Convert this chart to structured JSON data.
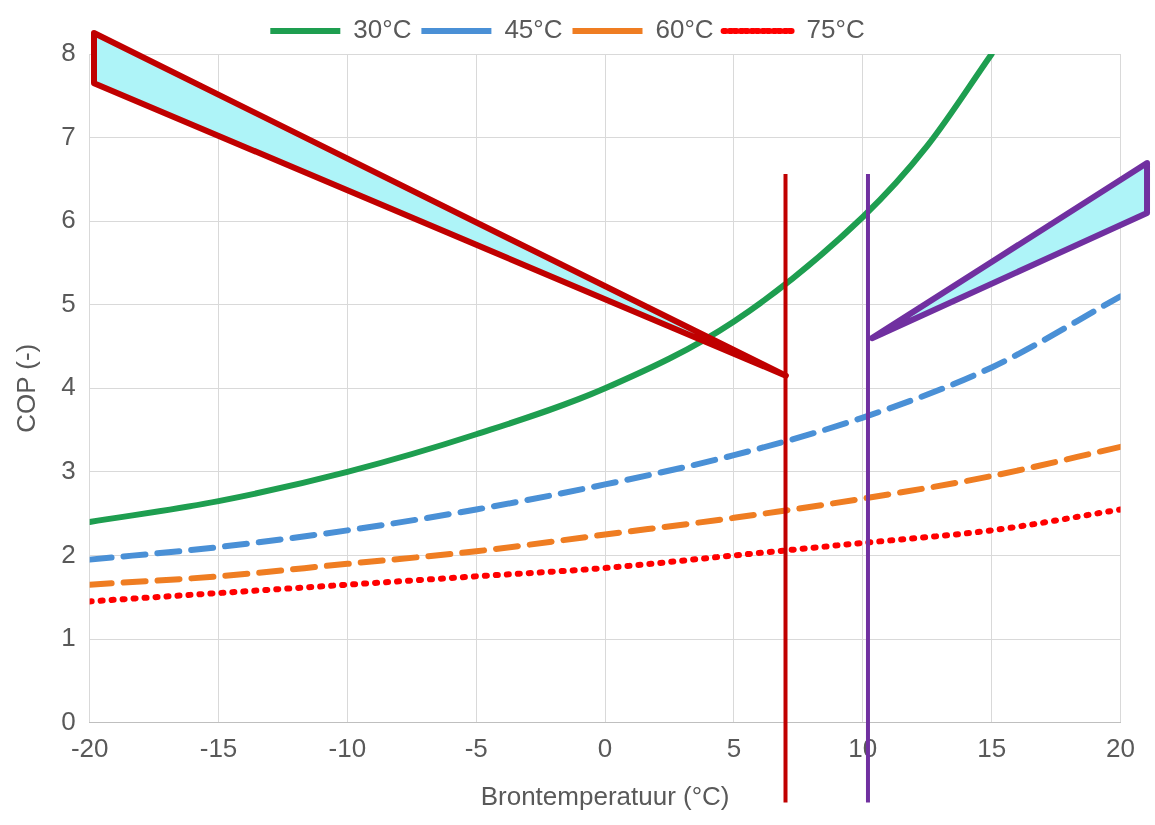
{
  "chart_data": {
    "type": "line",
    "xlabel": "Brontemperatuur (°C)",
    "ylabel": "COP (-)",
    "xlim": [
      -20,
      20
    ],
    "xticks": [
      -20,
      -15,
      -10,
      -5,
      0,
      5,
      10,
      15,
      20
    ],
    "ylim": [
      0,
      8
    ],
    "yticks": [
      0,
      1,
      2,
      3,
      4,
      5,
      6,
      7,
      8
    ],
    "grid": true,
    "legend": "top",
    "marker": "none",
    "series": [
      {
        "name": "30°C",
        "color": "#1e9e50",
        "line_style": "solid",
        "x": [
          -20,
          -15,
          -10,
          -5,
          0,
          5,
          10,
          12.5,
          15
        ],
        "values": [
          2.4,
          2.65,
          3.0,
          3.45,
          4.0,
          4.8,
          6.05,
          6.9,
          8.0
        ]
      },
      {
        "name": "45°C",
        "color": "#4a90d6",
        "line_style": "dashed",
        "x": [
          -20,
          -15,
          -10,
          -5,
          0,
          5,
          10,
          15,
          20
        ],
        "values": [
          1.95,
          2.1,
          2.3,
          2.55,
          2.85,
          3.2,
          3.65,
          4.25,
          5.1
        ]
      },
      {
        "name": "60°C",
        "color": "#ef7d22",
        "line_style": "dashed",
        "x": [
          -20,
          -15,
          -10,
          -5,
          0,
          5,
          10,
          15,
          20
        ],
        "values": [
          1.65,
          1.75,
          1.9,
          2.05,
          2.25,
          2.45,
          2.68,
          2.95,
          3.3
        ]
      },
      {
        "name": "75°C",
        "color": "#ff0000",
        "line_style": "dotted",
        "x": [
          -20,
          -15,
          -10,
          -5,
          0,
          5,
          10,
          15,
          20
        ],
        "values": [
          1.45,
          1.55,
          1.65,
          1.75,
          1.85,
          2.0,
          2.15,
          2.3,
          2.55
        ]
      }
    ],
    "ref_lines": [
      {
        "axis": "x",
        "value": 7,
        "color": "#c00000"
      },
      {
        "axis": "x",
        "value": 10.2,
        "color": "#7030a0"
      }
    ]
  }
}
